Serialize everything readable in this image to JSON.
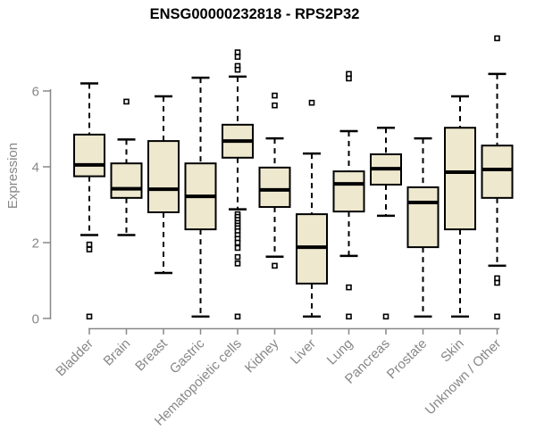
{
  "chart_data": {
    "type": "boxplot",
    "title": "ENSG00000232818 - RPS2P32",
    "ylabel": "Expression",
    "xlabel": "",
    "yticks": [
      0,
      2,
      4,
      6
    ],
    "ylim": [
      0,
      7.6
    ],
    "grid": false,
    "legend": "none",
    "box_fill_color": "#EDE8CE",
    "box_stroke_color": "#000000",
    "axis_color": "#888888",
    "label_color": "#878787",
    "categories": [
      "Bladder",
      "Brain",
      "Breast",
      "Gastric",
      "Hematopoietic cells",
      "Kidney",
      "Liver",
      "Lung",
      "Pancreas",
      "Prostate",
      "Skin",
      "Unknown / Other"
    ],
    "series": [
      {
        "category": "Bladder",
        "low": 2.2,
        "q1": 3.75,
        "median": 4.05,
        "q3": 4.85,
        "high": 6.2,
        "outliers": [
          1.95,
          1.82,
          0.05
        ]
      },
      {
        "category": "Brain",
        "low": 2.2,
        "q1": 3.18,
        "median": 3.42,
        "q3": 4.09,
        "high": 4.72,
        "outliers": [
          5.72
        ]
      },
      {
        "category": "Breast",
        "low": 1.2,
        "q1": 2.8,
        "median": 3.41,
        "q3": 4.68,
        "high": 5.86,
        "outliers": []
      },
      {
        "category": "Gastric",
        "low": 0.05,
        "q1": 2.35,
        "median": 3.22,
        "q3": 4.09,
        "high": 6.35,
        "outliers": []
      },
      {
        "category": "Hematopoietic cells",
        "low": 2.88,
        "q1": 4.24,
        "median": 4.68,
        "q3": 5.11,
        "high": 6.38,
        "outliers": [
          7.02,
          6.9,
          6.66,
          6.56,
          2.75,
          2.68,
          2.6,
          2.52,
          2.45,
          2.38,
          2.3,
          2.2,
          2.1,
          2.0,
          1.86,
          1.62,
          1.45,
          0.05
        ]
      },
      {
        "category": "Kidney",
        "low": 1.63,
        "q1": 2.94,
        "median": 3.39,
        "q3": 3.98,
        "high": 4.75,
        "outliers": [
          5.88,
          5.62,
          1.39
        ]
      },
      {
        "category": "Liver",
        "low": 0.05,
        "q1": 0.92,
        "median": 1.88,
        "q3": 2.75,
        "high": 4.35,
        "outliers": [
          5.69
        ]
      },
      {
        "category": "Lung",
        "low": 1.65,
        "q1": 2.82,
        "median": 3.55,
        "q3": 3.88,
        "high": 4.94,
        "outliers": [
          6.45,
          6.33,
          0.82,
          0.05
        ]
      },
      {
        "category": "Pancreas",
        "low": 2.71,
        "q1": 3.53,
        "median": 3.95,
        "q3": 4.33,
        "high": 5.03,
        "outliers": [
          0.05
        ]
      },
      {
        "category": "Prostate",
        "low": 0.05,
        "q1": 1.88,
        "median": 3.06,
        "q3": 3.46,
        "high": 4.75,
        "outliers": []
      },
      {
        "category": "Skin",
        "low": 0.05,
        "q1": 2.35,
        "median": 3.86,
        "q3": 5.03,
        "high": 5.86,
        "outliers": []
      },
      {
        "category": "Unknown / Other",
        "low": 1.39,
        "q1": 3.18,
        "median": 3.93,
        "q3": 4.56,
        "high": 6.45,
        "outliers": [
          7.39,
          1.06,
          0.94,
          0.05
        ]
      }
    ]
  }
}
